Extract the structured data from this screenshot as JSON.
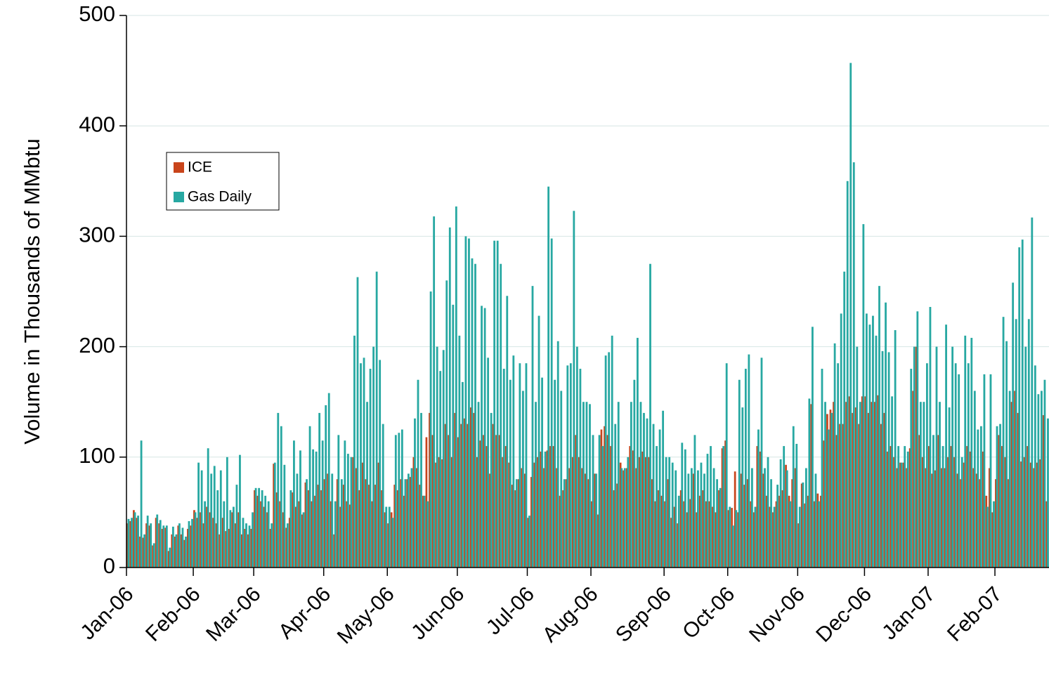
{
  "chart_data": {
    "type": "bar",
    "ylabel": "Volume in Thousands of MMbtu",
    "ylim": [
      0,
      500
    ],
    "yticks": [
      0,
      100,
      200,
      300,
      400,
      500
    ],
    "grid": true,
    "legend_loc": "upper left",
    "categories": [
      "Jan-06",
      null,
      null,
      null,
      null,
      null,
      null,
      null,
      null,
      null,
      null,
      null,
      null,
      null,
      null,
      null,
      null,
      null,
      null,
      null,
      null,
      "Feb-06",
      null,
      null,
      null,
      null,
      null,
      null,
      null,
      null,
      null,
      null,
      null,
      null,
      null,
      null,
      null,
      null,
      null,
      null,
      "Mar-06",
      null,
      null,
      null,
      null,
      null,
      null,
      null,
      null,
      null,
      null,
      null,
      null,
      null,
      null,
      null,
      null,
      null,
      null,
      null,
      null,
      null,
      "Apr-06",
      null,
      null,
      null,
      null,
      null,
      null,
      null,
      null,
      null,
      null,
      null,
      null,
      null,
      null,
      null,
      null,
      null,
      null,
      null,
      "May-06",
      null,
      null,
      null,
      null,
      null,
      null,
      null,
      null,
      null,
      null,
      null,
      null,
      null,
      null,
      null,
      null,
      null,
      null,
      null,
      null,
      null,
      "Jun-06",
      null,
      null,
      null,
      null,
      null,
      null,
      null,
      null,
      null,
      null,
      null,
      null,
      null,
      null,
      null,
      null,
      null,
      null,
      null,
      null,
      null,
      "Jul-06",
      null,
      null,
      null,
      null,
      null,
      null,
      null,
      null,
      null,
      null,
      null,
      null,
      null,
      null,
      null,
      null,
      null,
      null,
      null,
      "Aug-06",
      null,
      null,
      null,
      null,
      null,
      null,
      null,
      null,
      null,
      null,
      null,
      null,
      null,
      null,
      null,
      null,
      null,
      null,
      null,
      null,
      null,
      null,
      "Sep-06",
      null,
      null,
      null,
      null,
      null,
      null,
      null,
      null,
      null,
      null,
      null,
      null,
      null,
      null,
      null,
      null,
      null,
      null,
      null,
      "Oct-06",
      null,
      null,
      null,
      null,
      null,
      null,
      null,
      null,
      null,
      null,
      null,
      null,
      null,
      null,
      null,
      null,
      null,
      null,
      null,
      null,
      null,
      "Nov-06",
      null,
      null,
      null,
      null,
      null,
      null,
      null,
      null,
      null,
      null,
      null,
      null,
      null,
      null,
      null,
      null,
      null,
      null,
      null,
      null,
      "Dec-06",
      null,
      null,
      null,
      null,
      null,
      null,
      null,
      null,
      null,
      null,
      null,
      null,
      null,
      null,
      null,
      null,
      null,
      null,
      null,
      "Jan-07",
      null,
      null,
      null,
      null,
      null,
      null,
      null,
      null,
      null,
      null,
      null,
      null,
      null,
      null,
      null,
      null,
      null,
      null,
      null,
      null,
      "Feb-07",
      null,
      null,
      null,
      null,
      null,
      null,
      null,
      null,
      null,
      null,
      null,
      null,
      null,
      null,
      null,
      null
    ],
    "series": [
      {
        "name": "ICE",
        "color": "#c9441b",
        "values": [
          40,
          42,
          52,
          45,
          28,
          27,
          40,
          38,
          20,
          45,
          40,
          35,
          36,
          15,
          30,
          28,
          38,
          30,
          25,
          35,
          38,
          52,
          45,
          50,
          40,
          55,
          50,
          45,
          40,
          30,
          45,
          33,
          35,
          50,
          40,
          50,
          30,
          35,
          30,
          35,
          70,
          65,
          60,
          55,
          50,
          35,
          94,
          68,
          60,
          50,
          36,
          45,
          68,
          55,
          60,
          48,
          77,
          70,
          60,
          65,
          75,
          70,
          80,
          85,
          60,
          30,
          80,
          55,
          75,
          60,
          57,
          100,
          90,
          70,
          95,
          80,
          75,
          60,
          75,
          95,
          70,
          50,
          40,
          50,
          75,
          70,
          80,
          65,
          80,
          82,
          100,
          90,
          75,
          65,
          118,
          140,
          120,
          95,
          100,
          98,
          130,
          120,
          100,
          140,
          118,
          130,
          135,
          130,
          145,
          140,
          100,
          115,
          120,
          110,
          85,
          130,
          120,
          120,
          100,
          110,
          95,
          75,
          70,
          80,
          90,
          85,
          45,
          82,
          95,
          100,
          105,
          90,
          106,
          110,
          110,
          90,
          65,
          70,
          80,
          90,
          100,
          120,
          100,
          90,
          85,
          80,
          60,
          85,
          48,
          125,
          128,
          120,
          110,
          70,
          76,
          95,
          88,
          90,
          110,
          106,
          90,
          100,
          105,
          100,
          100,
          80,
          60,
          70,
          65,
          60,
          80,
          45,
          55,
          40,
          70,
          60,
          50,
          62,
          85,
          50,
          65,
          70,
          60,
          60,
          55,
          50,
          70,
          108,
          115,
          52,
          54,
          87,
          50,
          85,
          75,
          80,
          60,
          50,
          110,
          105,
          85,
          65,
          55,
          50,
          60,
          65,
          70,
          93,
          65,
          80,
          90,
          40,
          76,
          58,
          65,
          148,
          60,
          67,
          65,
          115,
          139,
          143,
          150,
          120,
          130,
          130,
          150,
          155,
          140,
          145,
          130,
          155,
          155,
          140,
          150,
          150,
          156,
          130,
          140,
          105,
          110,
          100,
          90,
          95,
          95,
          90,
          108,
          160,
          200,
          120,
          100,
          90,
          110,
          85,
          88,
          120,
          90,
          90,
          100,
          110,
          100,
          85,
          80,
          95,
          110,
          105,
          90,
          85,
          80,
          105,
          65,
          90,
          50,
          80,
          120,
          110,
          100,
          80,
          150,
          160,
          140,
          96,
          100,
          110,
          95,
          90,
          95,
          98,
          138,
          60
        ]
      },
      {
        "name": "Gas Daily",
        "color": "#27a8a2",
        "values": [
          44,
          45,
          50,
          47,
          115,
          30,
          47,
          40,
          22,
          48,
          43,
          38,
          38,
          18,
          37,
          30,
          40,
          36,
          28,
          42,
          44,
          50,
          95,
          88,
          60,
          108,
          85,
          92,
          70,
          88,
          60,
          100,
          52,
          55,
          75,
          102,
          45,
          40,
          38,
          50,
          72,
          72,
          70,
          65,
          60,
          40,
          95,
          140,
          128,
          93,
          40,
          70,
          115,
          85,
          106,
          50,
          80,
          128,
          107,
          105,
          140,
          115,
          147,
          158,
          85,
          60,
          120,
          80,
          115,
          103,
          100,
          210,
          263,
          185,
          190,
          150,
          180,
          200,
          268,
          188,
          130,
          55,
          55,
          45,
          120,
          122,
          125,
          80,
          85,
          90,
          135,
          170,
          140,
          65,
          60,
          250,
          318,
          200,
          178,
          197,
          260,
          308,
          238,
          327,
          210,
          168,
          300,
          298,
          280,
          275,
          150,
          237,
          235,
          190,
          140,
          296,
          296,
          275,
          180,
          246,
          170,
          192,
          80,
          185,
          160,
          185,
          47,
          255,
          150,
          228,
          172,
          105,
          345,
          298,
          170,
          205,
          160,
          80,
          183,
          185,
          323,
          200,
          180,
          150,
          150,
          148,
          120,
          85,
          120,
          110,
          192,
          195,
          210,
          130,
          150,
          90,
          90,
          100,
          150,
          170,
          208,
          150,
          140,
          135,
          275,
          130,
          110,
          125,
          142,
          100,
          100,
          95,
          88,
          65,
          113,
          107,
          85,
          90,
          120,
          88,
          95,
          85,
          103,
          110,
          90,
          80,
          72,
          110,
          185,
          55,
          38,
          52,
          170,
          145,
          180,
          193,
          90,
          55,
          125,
          190,
          90,
          100,
          80,
          55,
          75,
          98,
          110,
          88,
          60,
          128,
          112,
          55,
          77,
          90,
          153,
          218,
          85,
          60,
          180,
          150,
          125,
          140,
          203,
          185,
          230,
          268,
          350,
          457,
          367,
          200,
          150,
          311,
          230,
          220,
          228,
          210,
          255,
          196,
          240,
          195,
          155,
          215,
          110,
          95,
          110,
          105,
          180,
          200,
          232,
          150,
          150,
          185,
          236,
          120,
          200,
          150,
          110,
          220,
          145,
          200,
          185,
          175,
          100,
          210,
          185,
          208,
          160,
          125,
          128,
          175,
          55,
          175,
          60,
          128,
          130,
          227,
          205,
          160,
          258,
          225,
          290,
          297,
          200,
          225,
          317,
          183,
          157,
          160,
          170,
          135
        ]
      }
    ]
  }
}
